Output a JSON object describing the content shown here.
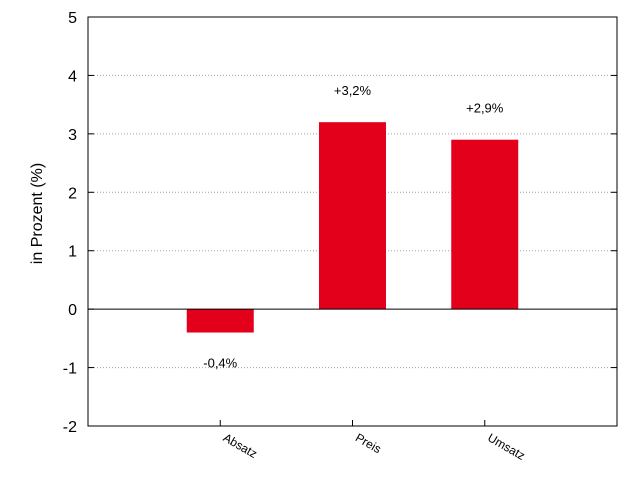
{
  "chart_data": {
    "type": "bar",
    "title": "",
    "xlabel": "",
    "ylabel": "in Prozent (%)",
    "categories": [
      "Absatz",
      "Preis",
      "Umsatz"
    ],
    "values": [
      -0.4,
      3.2,
      2.9
    ],
    "data_labels": [
      "-0,4%",
      "+3,2%",
      "+2,9%"
    ],
    "ylim": [
      -2,
      5
    ],
    "yticks": [
      -2,
      -1,
      0,
      1,
      2,
      3,
      4,
      5
    ],
    "ytick_labels": [
      "-2",
      "-1",
      "0",
      "1",
      "2",
      "3",
      "4",
      "5"
    ],
    "grid": "horizontal dotted",
    "bar_color": "#e2001a",
    "zero_line": true
  }
}
